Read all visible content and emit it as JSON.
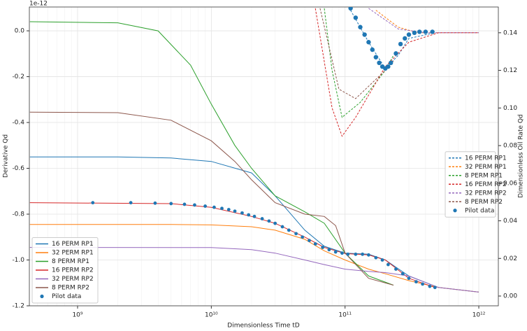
{
  "chart_data": {
    "type": "line",
    "multiplier": "1e-12",
    "xlabel": "Dimensionless Time tD",
    "ylabel": "Derivative Qd",
    "y2label": "Dimensionless Oil Rate Qd",
    "xscale": "log",
    "grid": true,
    "xlim": [
      436000000,
      1400000000000
    ],
    "ylim": [
      -1.2,
      0.104
    ],
    "y2lim": [
      -0.0052,
      0.1537
    ],
    "xticks": [
      {
        "value": 1000000000,
        "label": "10⁹"
      },
      {
        "value": 10000000000,
        "label": "10¹⁰"
      },
      {
        "value": 100000000000,
        "label": "10¹¹"
      },
      {
        "value": 1000000000000,
        "label": "10¹²"
      }
    ],
    "yticks": [
      {
        "value": -1.2,
        "label": "-1.2"
      },
      {
        "value": -1,
        "label": "-1.0"
      },
      {
        "value": -0.8,
        "label": "-0.8"
      },
      {
        "value": -0.6,
        "label": "-0.6"
      },
      {
        "value": -0.4,
        "label": "-0.4"
      },
      {
        "value": -0.2,
        "label": "-0.2"
      },
      {
        "value": 0,
        "label": "0.0"
      }
    ],
    "y2ticks": [
      {
        "value": 0,
        "label": "0.00"
      },
      0.02,
      0.04,
      0.06,
      0.08,
      {
        "value": 0.1,
        "label": "0.10"
      },
      0.12,
      0.14
    ],
    "legend": {
      "y": "lower left",
      "y2": "center right"
    },
    "series": [
      {
        "name": "16 PERM RP1",
        "color": "#1f77b4",
        "style": "solid",
        "axis": "y",
        "x": [
          440000000,
          2000000000,
          5000000000,
          10000000000,
          20000000000,
          30000000000,
          50000000000,
          70000000000,
          100000000000,
          150000000000,
          200000000000,
          300000000000,
          500000000000,
          1000000000000
        ],
        "values": [
          -0.55,
          -0.55,
          -0.555,
          -0.57,
          -0.62,
          -0.72,
          -0.87,
          -0.94,
          -0.97,
          -0.975,
          -1.0,
          -1.07,
          -1.12,
          -1.14
        ]
      },
      {
        "name": "32 PERM RP1",
        "color": "#ff7f0e",
        "style": "solid",
        "axis": "y",
        "x": [
          440000000,
          5000000000,
          10000000000,
          20000000000,
          30000000000,
          50000000000,
          70000000000,
          100000000000,
          150000000000,
          200000000000,
          300000000000,
          500000000000,
          1000000000000
        ],
        "values": [
          -0.845,
          -0.845,
          -0.847,
          -0.855,
          -0.87,
          -0.91,
          -0.96,
          -1.0,
          -1.04,
          -1.06,
          -1.09,
          -1.12,
          -1.14
        ]
      },
      {
        "name": "8 PERM RP1",
        "color": "#2ca02c",
        "style": "solid",
        "axis": "y",
        "x": [
          440000000,
          2000000000,
          4000000000,
          7000000000,
          10000000000,
          15000000000,
          20000000000,
          30000000000,
          50000000000,
          70000000000,
          100000000000,
          150000000000,
          230000000000
        ],
        "values": [
          0.04,
          0.035,
          0.0,
          -0.15,
          -0.32,
          -0.5,
          -0.6,
          -0.72,
          -0.79,
          -0.84,
          -0.97,
          -1.07,
          -1.11
        ]
      },
      {
        "name": "16 PERM RP2",
        "color": "#d62728",
        "style": "solid",
        "axis": "y",
        "x": [
          440000000,
          5000000000,
          10000000000,
          20000000000,
          30000000000,
          50000000000,
          70000000000,
          100000000000,
          150000000000,
          200000000000,
          300000000000,
          470000000000
        ],
        "values": [
          -0.75,
          -0.754,
          -0.77,
          -0.81,
          -0.84,
          -0.9,
          -0.945,
          -0.972,
          -0.978,
          -1.0,
          -1.08,
          -1.12
        ]
      },
      {
        "name": "32 PERM RP2",
        "color": "#9467bd",
        "style": "solid",
        "axis": "y",
        "x": [
          440000000,
          10000000000,
          20000000000,
          30000000000,
          50000000000,
          70000000000,
          100000000000,
          150000000000,
          200000000000,
          300000000000,
          500000000000,
          1000000000000
        ],
        "values": [
          -0.945,
          -0.946,
          -0.955,
          -0.97,
          -1.0,
          -1.02,
          -1.04,
          -1.05,
          -1.055,
          -1.07,
          -1.12,
          -1.14
        ]
      },
      {
        "name": "8 PERM RP2",
        "color": "#8c564b",
        "style": "solid",
        "axis": "y",
        "x": [
          440000000,
          2000000000,
          5000000000,
          10000000000,
          15000000000,
          20000000000,
          30000000000,
          50000000000,
          70000000000,
          85000000000,
          100000000000,
          150000000000,
          230000000000
        ],
        "values": [
          -0.355,
          -0.357,
          -0.39,
          -0.48,
          -0.57,
          -0.65,
          -0.75,
          -0.8,
          -0.81,
          -0.85,
          -0.97,
          -1.08,
          -1.11
        ]
      },
      {
        "name": "Pilot data",
        "color": "#1f77b4",
        "style": "dots",
        "axis": "y",
        "x": [
          1300000000,
          2500000000,
          3800000000,
          5000000000,
          6300000000,
          7500000000,
          9000000000,
          10500000000,
          12000000000,
          13500000000,
          15000000000,
          17000000000,
          19000000000,
          21000000000,
          24000000000,
          27000000000,
          30000000000,
          34000000000,
          38000000000,
          43000000000,
          48000000000,
          54000000000,
          60000000000,
          68000000000,
          76000000000,
          85000000000,
          95000000000,
          105000000000,
          120000000000,
          135000000000,
          150000000000,
          170000000000,
          190000000000,
          210000000000,
          240000000000,
          270000000000,
          300000000000,
          340000000000,
          380000000000,
          430000000000,
          470000000000
        ],
        "values": [
          -0.75,
          -0.75,
          -0.752,
          -0.754,
          -0.757,
          -0.76,
          -0.765,
          -0.77,
          -0.775,
          -0.78,
          -0.787,
          -0.795,
          -0.803,
          -0.81,
          -0.82,
          -0.83,
          -0.84,
          -0.855,
          -0.87,
          -0.885,
          -0.9,
          -0.915,
          -0.93,
          -0.945,
          -0.955,
          -0.965,
          -0.97,
          -0.975,
          -0.975,
          -0.975,
          -0.978,
          -0.99,
          -1.0,
          -1.02,
          -1.04,
          -1.06,
          -1.08,
          -1.095,
          -1.105,
          -1.115,
          -1.12
        ]
      },
      {
        "name": "16 PERM RP1",
        "color": "#1f77b4",
        "style": "dashed",
        "axis": "y2",
        "x": [
          110000000000,
          150000000000,
          200000000000,
          250000000000,
          300000000000,
          470000000000
        ],
        "values": [
          0.152,
          0.135,
          0.121,
          0.128,
          0.137,
          0.14
        ]
      },
      {
        "name": "32 PERM RP1",
        "color": "#ff7f0e",
        "style": "dashed",
        "axis": "y2",
        "x": [
          170000000000,
          250000000000,
          350000000000,
          1000000000000
        ],
        "values": [
          0.152,
          0.143,
          0.14,
          0.14
        ]
      },
      {
        "name": "8 PERM RP1",
        "color": "#2ca02c",
        "style": "dashed",
        "axis": "y2",
        "x": [
          70000000000,
          80000000000,
          95000000000,
          130000000000,
          200000000000,
          230000000000
        ],
        "values": [
          0.153,
          0.12,
          0.095,
          0.103,
          0.12,
          0.128
        ]
      },
      {
        "name": "16 PERM RP2",
        "color": "#d62728",
        "style": "dashed",
        "axis": "y2",
        "x": [
          60000000000,
          80000000000,
          95000000000,
          120000000000,
          200000000000,
          300000000000,
          500000000000,
          1000000000000
        ],
        "values": [
          0.153,
          0.1,
          0.085,
          0.095,
          0.122,
          0.135,
          0.14,
          0.14
        ]
      },
      {
        "name": "32 PERM RP2",
        "color": "#9467bd",
        "style": "dashed",
        "axis": "y2",
        "x": [
          150000000000,
          250000000000,
          400000000000,
          1000000000000
        ],
        "values": [
          0.153,
          0.142,
          0.14,
          0.14
        ]
      },
      {
        "name": "8 PERM RP2",
        "color": "#8c564b",
        "style": "dashed",
        "axis": "y2",
        "x": [
          65000000000,
          90000000000,
          120000000000,
          200000000000,
          230000000000
        ],
        "values": [
          0.153,
          0.11,
          0.105,
          0.12,
          0.125
        ]
      },
      {
        "name": "Pilot data",
        "color": "#1f77b4",
        "style": "dots",
        "axis": "y2",
        "x": [
          110000000000,
          120000000000,
          130000000000,
          140000000000,
          150000000000,
          160000000000,
          170000000000,
          180000000000,
          190000000000,
          200000000000,
          210000000000,
          220000000000,
          240000000000,
          260000000000,
          280000000000,
          300000000000,
          330000000000,
          360000000000,
          400000000000,
          450000000000
        ],
        "values": [
          0.153,
          0.148,
          0.143,
          0.139,
          0.135,
          0.131,
          0.127,
          0.124,
          0.122,
          0.121,
          0.122,
          0.124,
          0.129,
          0.134,
          0.137,
          0.139,
          0.14,
          0.1405,
          0.1405,
          0.1405
        ]
      }
    ]
  }
}
